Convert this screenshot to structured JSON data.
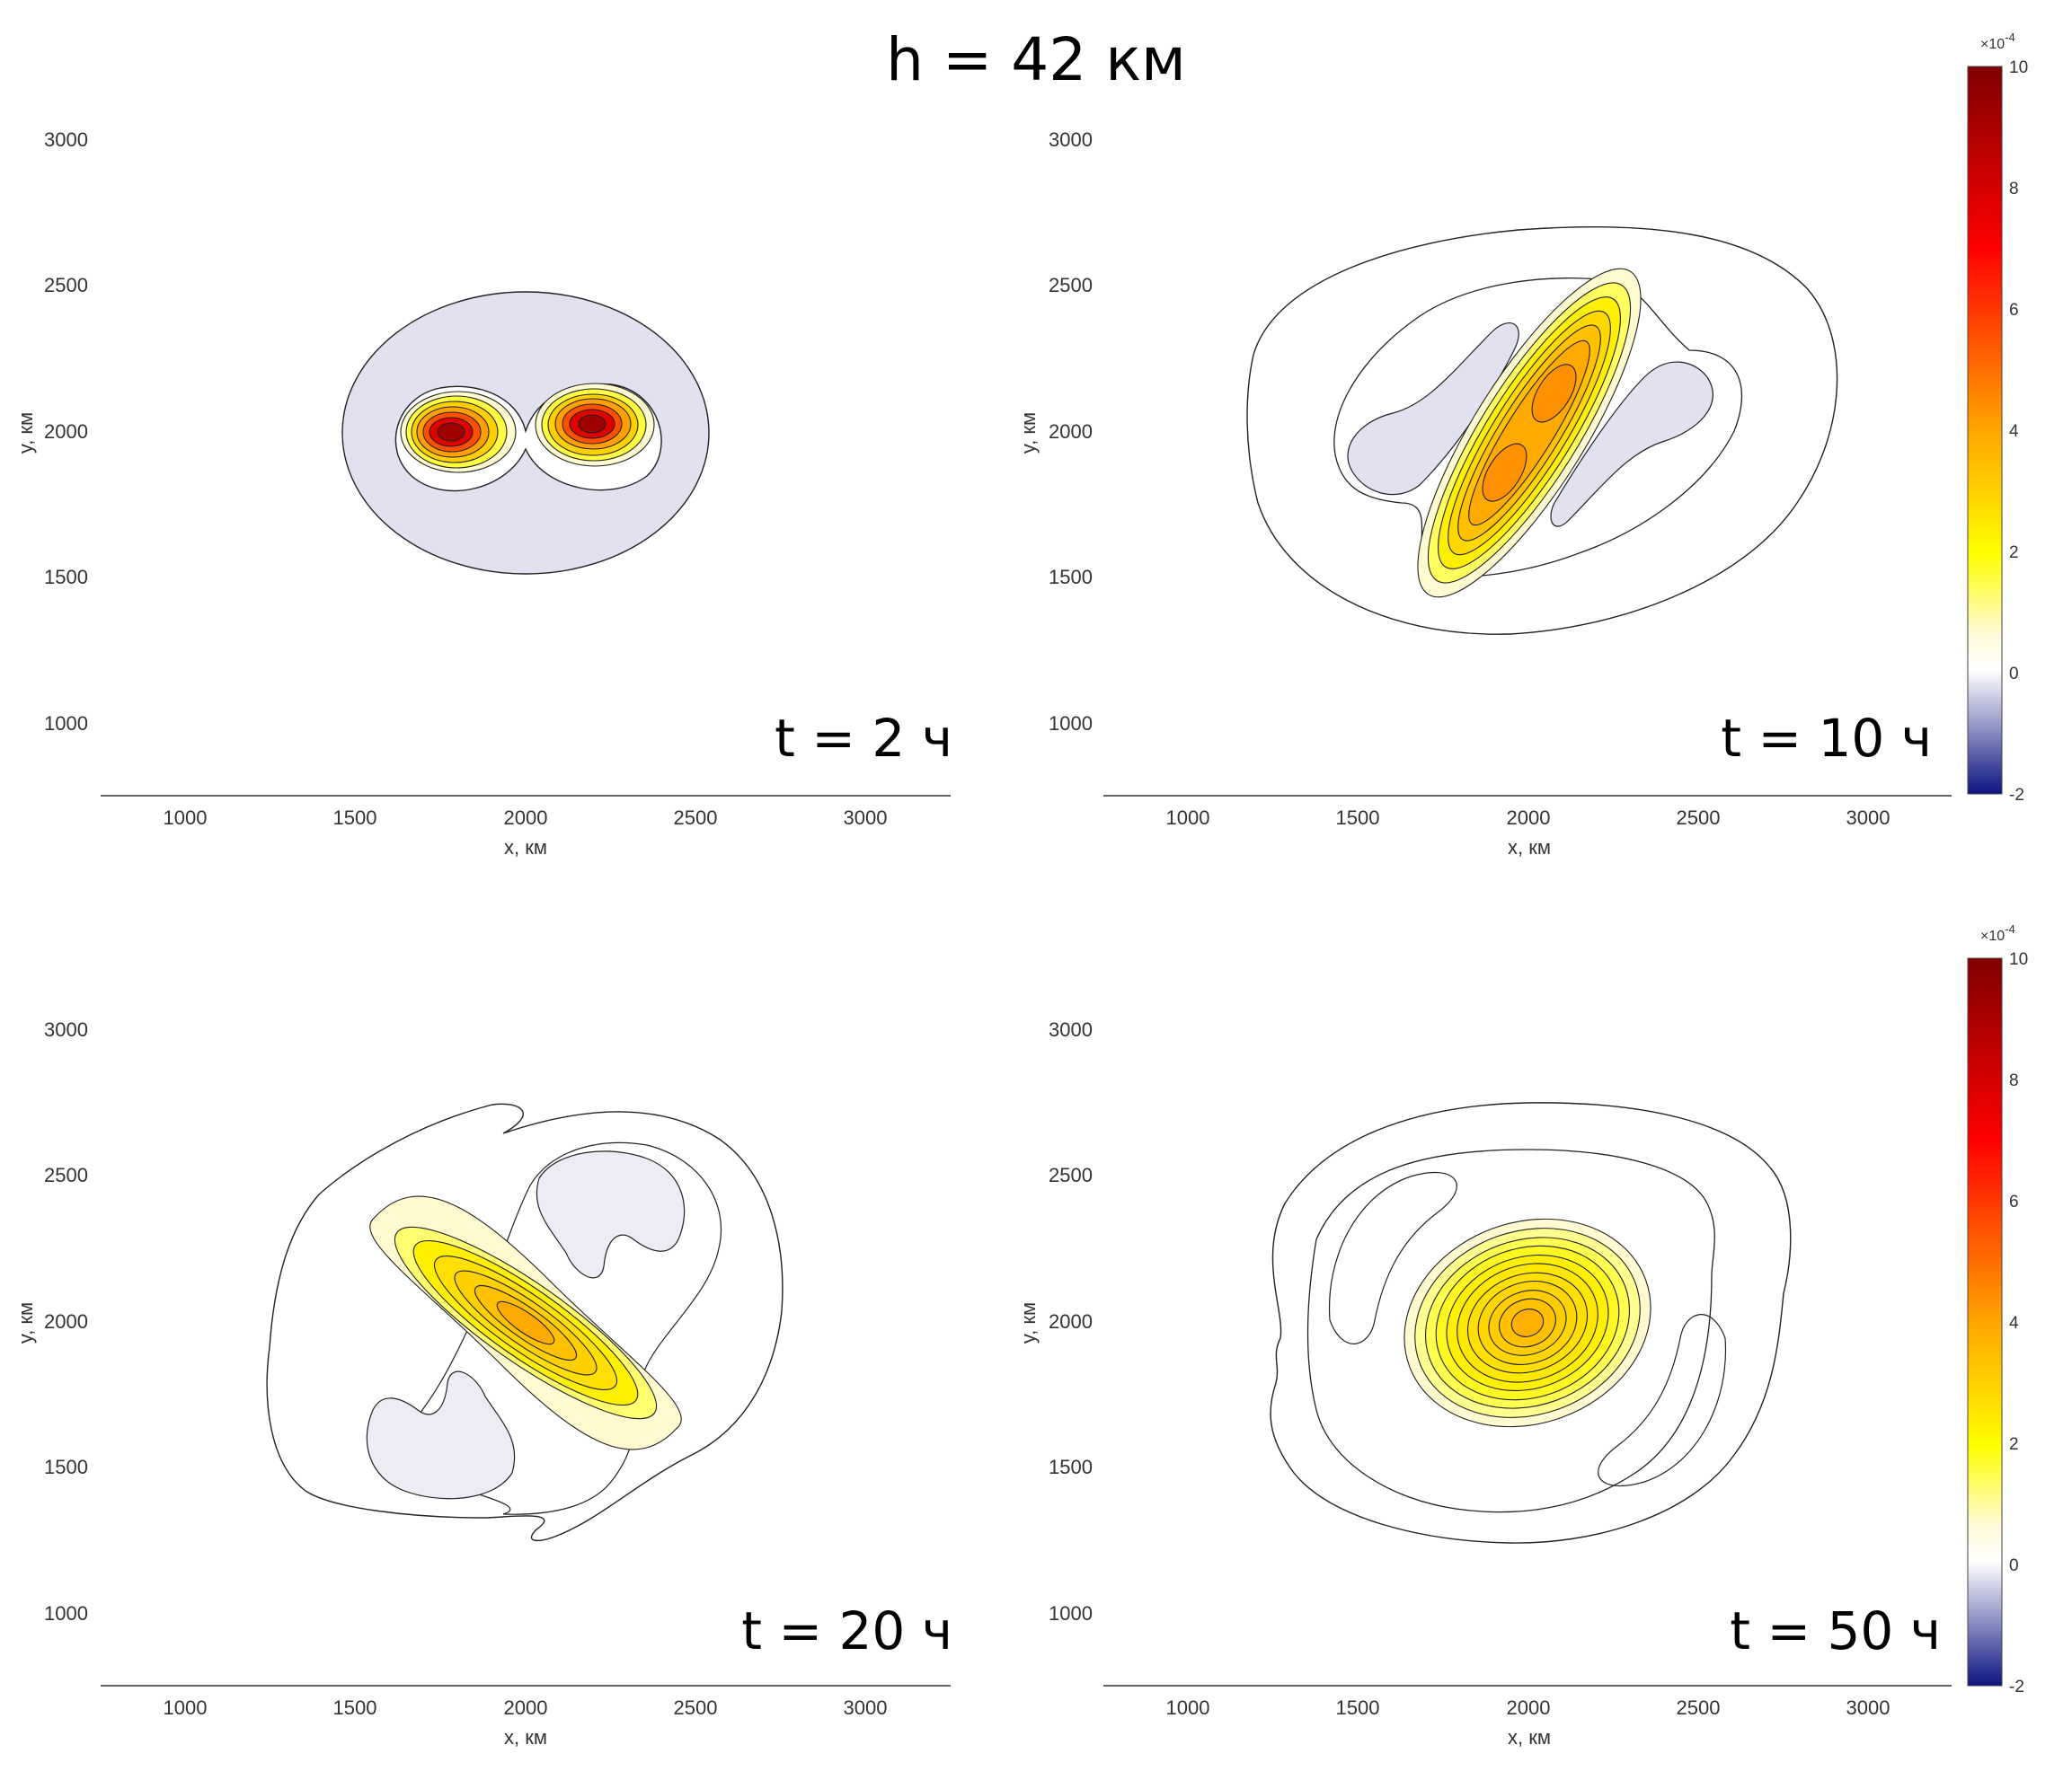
{
  "title": "h = 42 км",
  "colors": {
    "contour_line": "#1a1a1a",
    "colormap": [
      "#0d1480",
      "#e3e3f0",
      "#ffffff",
      "#fffac0",
      "#ffff00",
      "#ffa500",
      "#ff0000",
      "#800000"
    ]
  },
  "chart_data": [
    {
      "type": "contour",
      "panel_label": "t = 2 ч",
      "xlabel": "x, км",
      "ylabel": "y, км",
      "xticks": [
        1000,
        1500,
        2000,
        2500,
        3000
      ],
      "yticks": [
        1000,
        1500,
        2000,
        2500,
        3000
      ],
      "xlim": [
        750,
        3250
      ],
      "ylim": [
        750,
        3250
      ],
      "features": [
        {
          "kind": "negative_lobe",
          "center": [
            2000,
            2000
          ],
          "rx": 540,
          "ry": 485,
          "angle": 0,
          "peak": -0.0002
        },
        {
          "kind": "positive_core",
          "center": [
            1790,
            2000
          ],
          "rx": 200,
          "ry": 150,
          "angle": 0,
          "peak": 0.0009
        },
        {
          "kind": "positive_core",
          "center": [
            2210,
            2020
          ],
          "rx": 200,
          "ry": 150,
          "angle": 0,
          "peak": 0.0009
        }
      ]
    },
    {
      "type": "contour",
      "panel_label": "t = 10 ч",
      "xlabel": "x, км",
      "ylabel": "y, км",
      "xticks": [
        1000,
        1500,
        2000,
        2500,
        3000
      ],
      "yticks": [
        1000,
        1500,
        2000,
        2500,
        3000
      ],
      "xlim": [
        750,
        3250
      ],
      "ylim": [
        750,
        3250
      ],
      "features": [
        {
          "kind": "outer_contour",
          "center": [
            2030,
            2060
          ],
          "rx": 820,
          "ry": 690,
          "angle": -10
        },
        {
          "kind": "positive_band",
          "center": [
            2000,
            2000
          ],
          "rx": 620,
          "ry": 150,
          "angle": 60,
          "peak": 0.00045
        },
        {
          "kind": "negative_lobe",
          "center": [
            1720,
            2030
          ],
          "rx": 300,
          "ry": 90,
          "angle": 45,
          "peak": -0.0002
        },
        {
          "kind": "negative_lobe",
          "center": [
            2320,
            1960
          ],
          "rx": 300,
          "ry": 90,
          "angle": 45,
          "peak": -0.0002
        }
      ]
    },
    {
      "type": "contour",
      "panel_label": "t = 20 ч",
      "xlabel": "x, км",
      "ylabel": "y, км",
      "xticks": [
        1000,
        1500,
        2000,
        2500,
        3000
      ],
      "yticks": [
        1000,
        1500,
        2000,
        2500,
        3000
      ],
      "xlim": [
        750,
        3250
      ],
      "ylim": [
        750,
        3250
      ],
      "features": [
        {
          "kind": "outer_contour",
          "center": [
            2000,
            2000
          ],
          "rx": 760,
          "ry": 760,
          "angle": 0
        },
        {
          "kind": "positive_spiral_core",
          "center": [
            2000,
            2000
          ],
          "rx": 330,
          "ry": 130,
          "angle": -35,
          "peak": 0.00038
        },
        {
          "kind": "negative_lobe",
          "center": [
            2250,
            2340
          ],
          "rx": 250,
          "ry": 90,
          "angle": 0,
          "peak": -0.0002
        },
        {
          "kind": "negative_lobe",
          "center": [
            1760,
            1660
          ],
          "rx": 250,
          "ry": 90,
          "angle": 0,
          "peak": -0.0002
        }
      ]
    },
    {
      "type": "contour",
      "panel_label": "t = 50 ч",
      "xlabel": "x, км",
      "ylabel": "y, км",
      "xticks": [
        1000,
        1500,
        2000,
        2500,
        3000
      ],
      "yticks": [
        1000,
        1500,
        2000,
        2500,
        3000
      ],
      "xlim": [
        750,
        3250
      ],
      "ylim": [
        750,
        3250
      ],
      "features": [
        {
          "kind": "outer_contour",
          "center": [
            2020,
            2000
          ],
          "rx": 780,
          "ry": 700,
          "angle": 0
        },
        {
          "kind": "positive_core",
          "center": [
            2000,
            2000
          ],
          "rx": 380,
          "ry": 300,
          "angle": -20,
          "peak": 0.0004
        }
      ]
    }
  ],
  "colorbars": [
    {
      "ticks": [
        "10",
        "8",
        "6",
        "4",
        "2",
        "0",
        "-2"
      ],
      "range": [
        -0.0002,
        0.001
      ],
      "exponent": "×10",
      "power": "-4"
    },
    {
      "ticks": [
        "10",
        "8",
        "6",
        "4",
        "2",
        "0",
        "-2"
      ],
      "range": [
        -0.0002,
        0.001
      ],
      "exponent": "×10",
      "power": "-4"
    }
  ]
}
